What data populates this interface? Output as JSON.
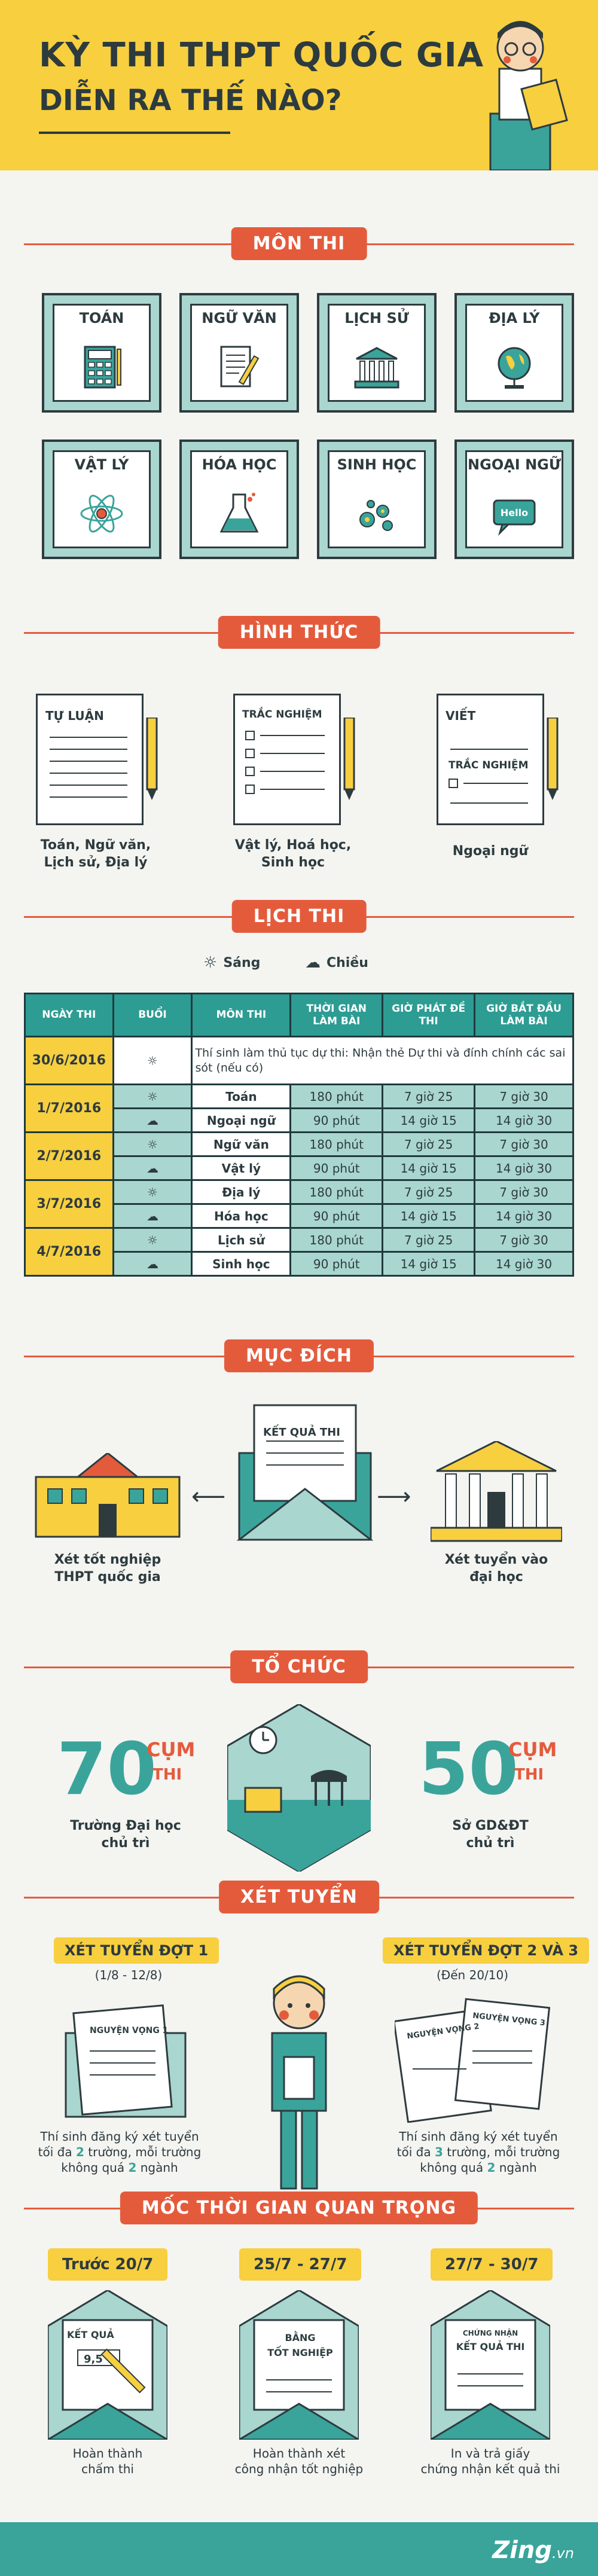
{
  "header": {
    "title": "KỲ THI THPT QUỐC GIA",
    "subtitle": "DIỄN RA THẾ NÀO?"
  },
  "sections": {
    "mon_thi": "MÔN THI",
    "hinh_thuc": "HÌNH THỨC",
    "lich_thi": "LỊCH THI",
    "muc_dich": "MỤC ĐÍCH",
    "to_chuc": "TỔ CHỨC",
    "xet_tuyen": "XÉT TUYỂN",
    "moc_thoi_gian": "MỐC THỜI GIAN QUAN TRỌNG"
  },
  "subjects": [
    "TOÁN",
    "NGỮ VĂN",
    "LỊCH SỬ",
    "ĐỊA LÝ",
    "VẬT LÝ",
    "HÓA HỌC",
    "SINH HỌC",
    "NGOẠI NGỮ"
  ],
  "subject_icons": [
    "calculator-icon",
    "paper-pen-icon",
    "building-icon",
    "globe-icon",
    "atom-icon",
    "flask-icon",
    "cells-icon",
    "hello-bubble-icon"
  ],
  "hello_text": "Hello",
  "formats": [
    {
      "label": "TỰ LUẬN",
      "caption1": "Toán, Ngữ văn,",
      "caption2": "Lịch sử, Địa lý"
    },
    {
      "label": "TRẮC NGHIỆM",
      "caption1": "Vật lý, Hoá học,",
      "caption2": "Sinh học"
    },
    {
      "label1": "VIẾT",
      "label2": "TRẮC NGHIỆM",
      "caption1": "Ngoại ngữ"
    }
  ],
  "legend": {
    "morning": "Sáng",
    "afternoon": "Chiều"
  },
  "schedule": {
    "headers": [
      "NGÀY THI",
      "BUỔI",
      "MÔN THI",
      "THỜI GIAN LÀM BÀI",
      "GIỜ PHÁT ĐỀ THI",
      "GIỜ BẮT ĐẦU LÀM BÀI"
    ],
    "note_date": "30/6/2016",
    "note": "Thí sinh làm thủ tục dự thi: Nhận thẻ Dự thi và đính chính các sai sót (nếu có)",
    "days": [
      {
        "date": "1/7/2016",
        "rows": [
          {
            "session": "morning",
            "subject": "Toán",
            "duration": "180 phút",
            "hand_out": "7 giờ 25",
            "start": "7 giờ 30"
          },
          {
            "session": "afternoon",
            "subject": "Ngoại ngữ",
            "duration": "90 phút",
            "hand_out": "14 giờ 15",
            "start": "14 giờ 30"
          }
        ]
      },
      {
        "date": "2/7/2016",
        "rows": [
          {
            "session": "morning",
            "subject": "Ngữ văn",
            "duration": "180 phút",
            "hand_out": "7 giờ 25",
            "start": "7 giờ 30"
          },
          {
            "session": "afternoon",
            "subject": "Vật lý",
            "duration": "90 phút",
            "hand_out": "14 giờ 15",
            "start": "14 giờ 30"
          }
        ]
      },
      {
        "date": "3/7/2016",
        "rows": [
          {
            "session": "morning",
            "subject": "Địa lý",
            "duration": "180 phút",
            "hand_out": "7 giờ 25",
            "start": "7 giờ 30"
          },
          {
            "session": "afternoon",
            "subject": "Hóa học",
            "duration": "90 phút",
            "hand_out": "14 giờ 15",
            "start": "14 giờ 30"
          }
        ]
      },
      {
        "date": "4/7/2016",
        "rows": [
          {
            "session": "morning",
            "subject": "Lịch sử",
            "duration": "180 phút",
            "hand_out": "7 giờ 25",
            "start": "7 giờ 30"
          },
          {
            "session": "afternoon",
            "subject": "Sinh học",
            "duration": "90 phút",
            "hand_out": "14 giờ 15",
            "start": "14 giờ 30"
          }
        ]
      }
    ]
  },
  "purpose": {
    "result_label": "KẾT QUẢ THI",
    "left1": "Xét tốt nghiệp",
    "left2": "THPT quốc gia",
    "right1": "Xét tuyển vào",
    "right2": "đại học"
  },
  "organize": {
    "left_num": "70",
    "left_unit1": "CỤM",
    "left_unit2": "THI",
    "left_cap1": "Trường Đại học",
    "left_cap2": "chủ trì",
    "right_num": "50",
    "right_unit1": "CỤM",
    "right_unit2": "THI",
    "right_cap1": "Sở GD&ĐT",
    "right_cap2": "chủ trì"
  },
  "admission": {
    "left_badge": "XÉT TUYỂN ĐỢT 1",
    "left_dates": "(1/8 - 12/8)",
    "left_doc": "NGUYỆN VỌNG 1",
    "left_cap1": "Thí sinh đăng ký xét tuyển",
    "left_cap2a": "tối đa ",
    "left_cap2b": "2",
    "left_cap2c": " trường, mỗi trường",
    "left_cap3a": "không quá ",
    "left_cap3b": "2",
    "left_cap3c": " ngành",
    "right_badge": "XÉT TUYỂN ĐỢT 2 VÀ 3",
    "right_dates": "(Đến 20/10)",
    "right_doc1": "NGUYỆN VỌNG 2",
    "right_doc2": "NGUYỆN VỌNG 3",
    "right_cap1": "Thí sinh đăng ký xét tuyển",
    "right_cap2a": "tối đa ",
    "right_cap2b": "3",
    "right_cap2c": " trường, mỗi trường",
    "right_cap3a": "không quá ",
    "right_cap3b": "2",
    "right_cap3c": " ngành"
  },
  "milestones": [
    {
      "date": "Trước 20/7",
      "doc1": "KẾT QUẢ",
      "score": "9,5",
      "cap1": "Hoàn thành",
      "cap2": "chấm thi"
    },
    {
      "date": "25/7 - 27/7",
      "doc1": "BẰNG",
      "doc2": "TỐT NGHIỆP",
      "cap1": "Hoàn thành xét",
      "cap2": "công nhận tốt nghiệp"
    },
    {
      "date": "27/7 - 30/7",
      "doc1": "CHỨNG NHẬN",
      "doc2": "KẾT QUẢ THI",
      "cap1": "In và trả giấy",
      "cap2": "chứng nhận kết quả thi"
    }
  ],
  "footer": {
    "brand": "Zing",
    "brand_suffix": ".vn"
  }
}
